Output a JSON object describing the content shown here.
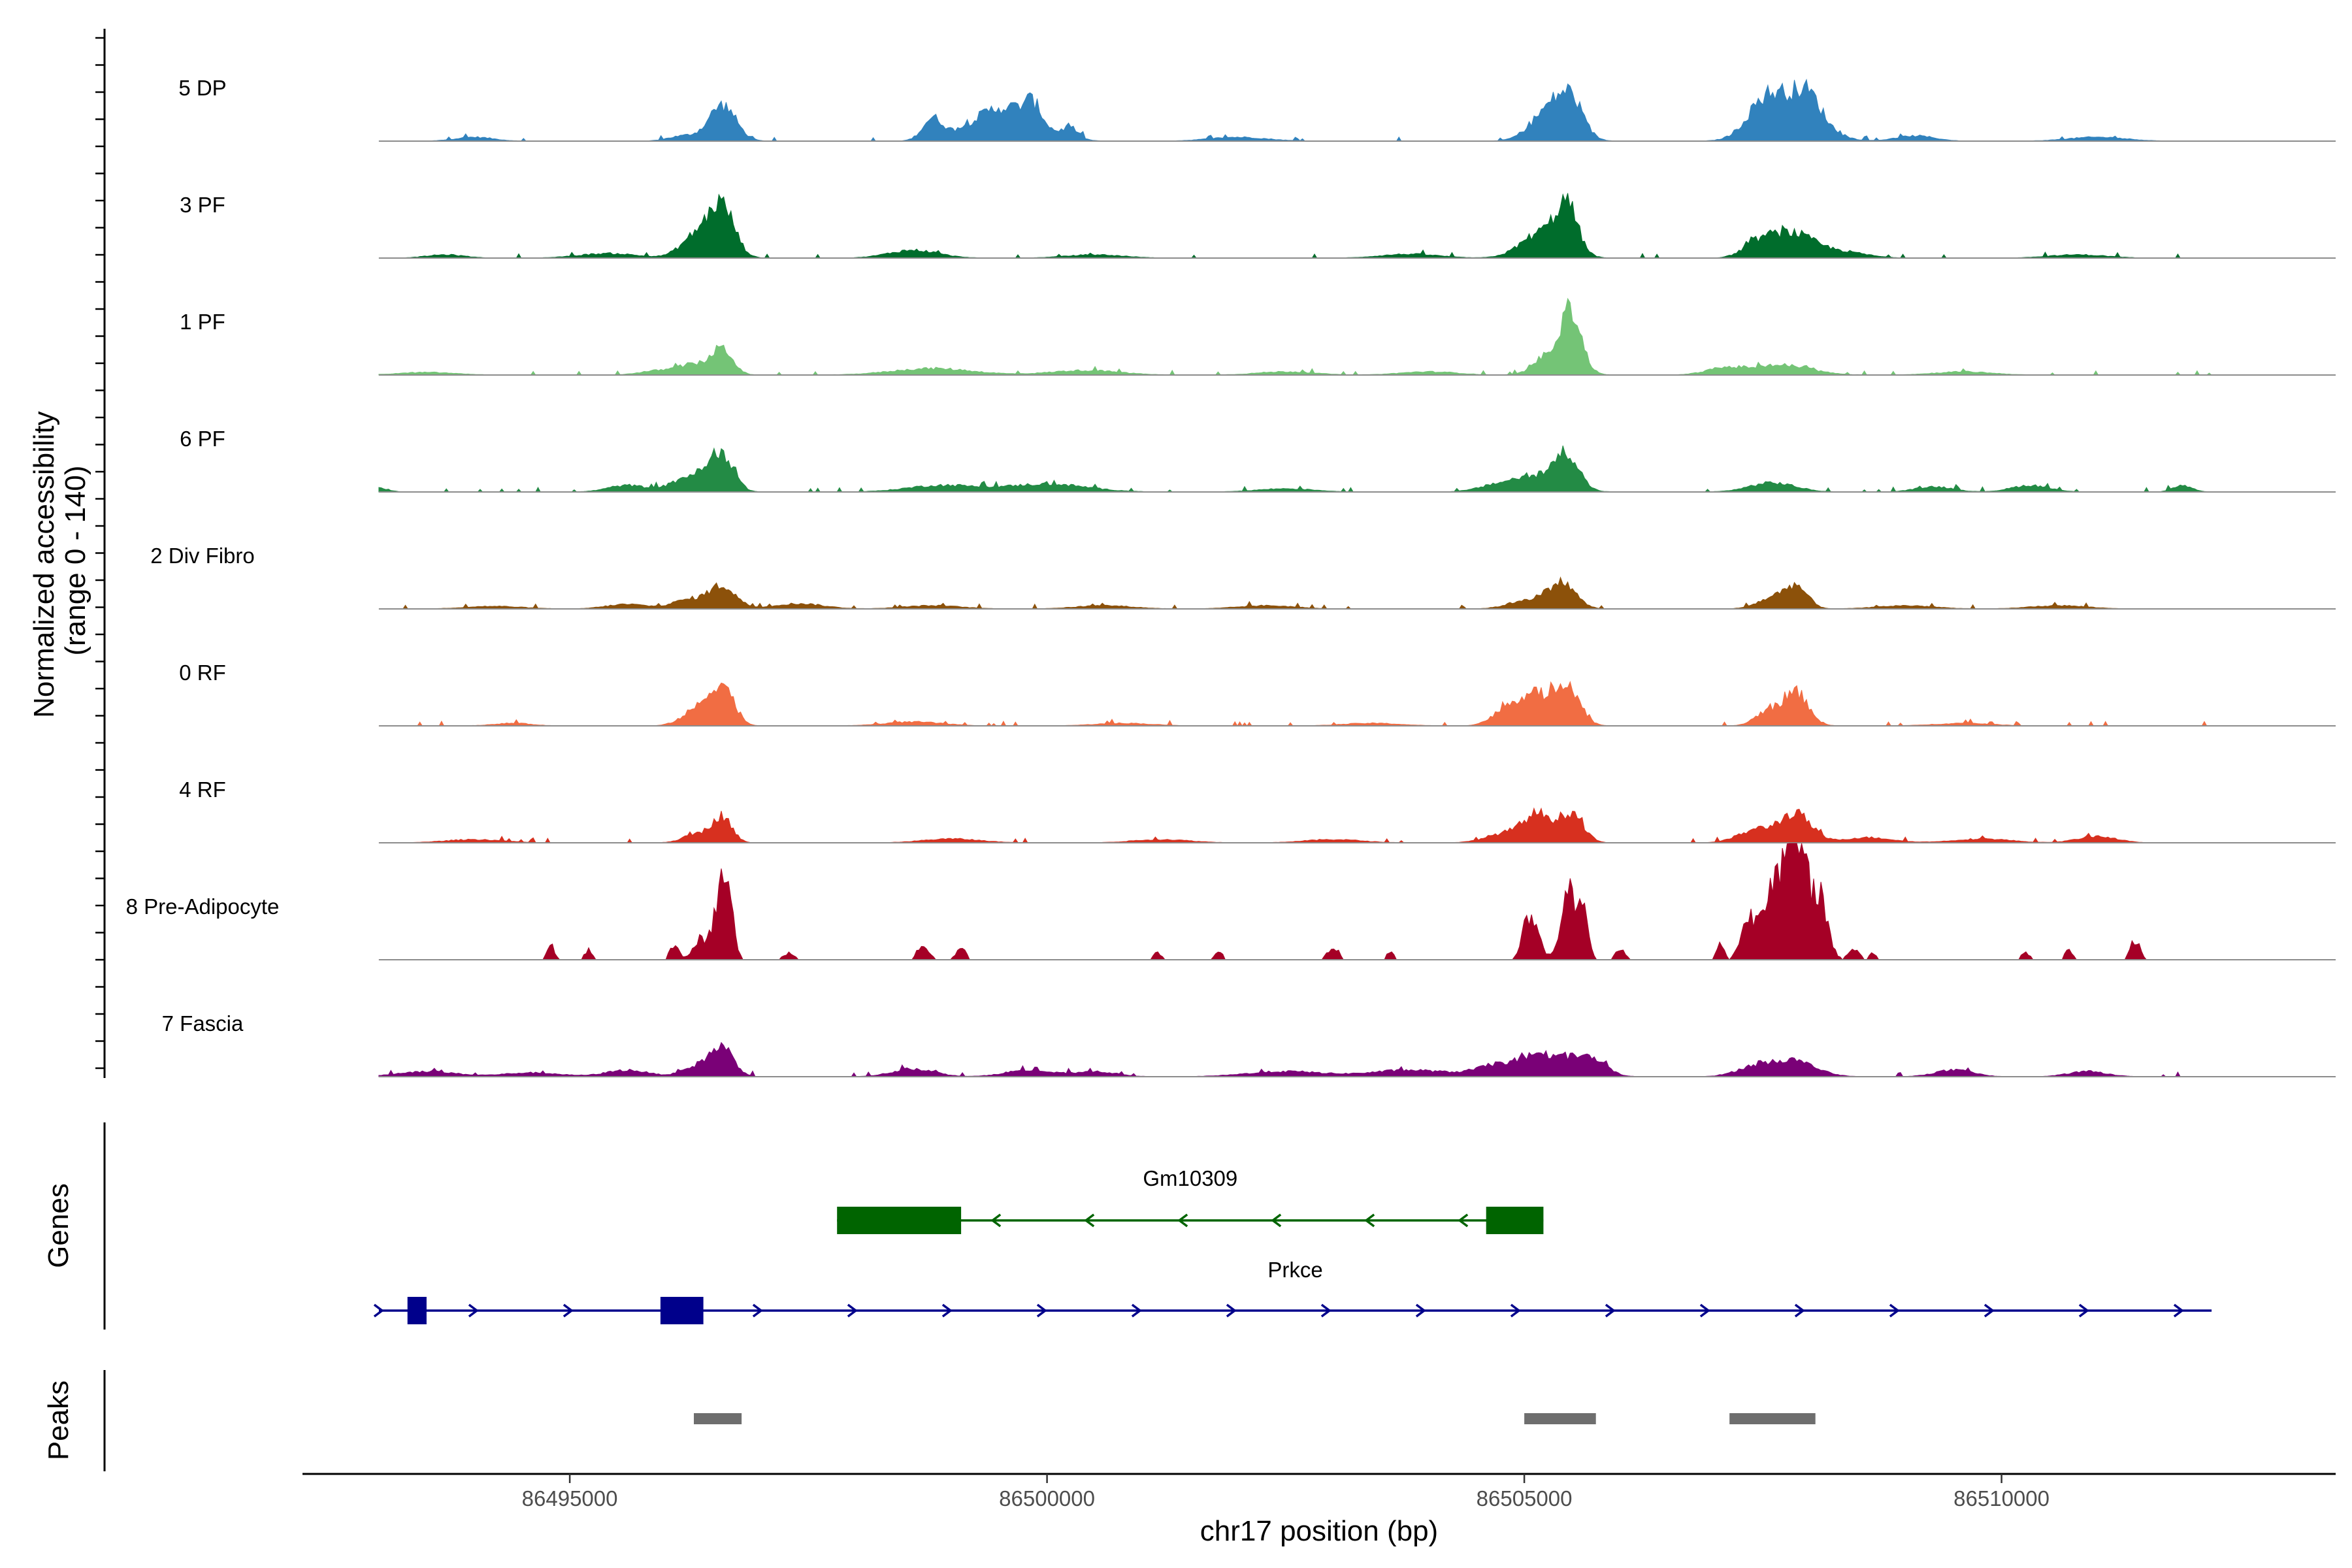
{
  "chart_data": {
    "type": "area",
    "ylabel": "Normalized accessibility\n(range 0 - 140)",
    "xlabel": "chr17 position (bp)",
    "xlim": [
      86492200,
      86513500
    ],
    "xticks": [
      86495000,
      86500000,
      86505000,
      86510000
    ],
    "x_tick_labels": [
      "86495000",
      "86500000",
      "86505000",
      "86510000"
    ],
    "coverage_range": [
      0,
      140
    ],
    "region": [
      86493000,
      86512200
    ],
    "tracks": [
      {
        "name": "5 DP",
        "color": "#3182bd",
        "peaks": [
          [
            86496600,
            140,
            55
          ],
          [
            86498800,
            105,
            32
          ],
          [
            86499550,
            330,
            52
          ],
          [
            86499850,
            90,
            28
          ],
          [
            86500250,
            80,
            16
          ],
          [
            86505300,
            200,
            54
          ],
          [
            86505500,
            120,
            40
          ],
          [
            86507800,
            280,
            57
          ],
          [
            86507500,
            180,
            36
          ],
          [
            86507980,
            130,
            30
          ],
          [
            86509100,
            200,
            8
          ],
          [
            86494000,
            200,
            6
          ],
          [
            86496200,
            160,
            8
          ],
          [
            86502000,
            300,
            6
          ],
          [
            86511000,
            300,
            6
          ]
        ]
      },
      {
        "name": "3 PF",
        "color": "#006d2c",
        "peaks": [
          [
            86496600,
            130,
            72
          ],
          [
            86496350,
            170,
            36
          ],
          [
            86498600,
            260,
            12
          ],
          [
            86495400,
            300,
            7
          ],
          [
            86505450,
            110,
            66
          ],
          [
            86505200,
            220,
            40
          ],
          [
            86507800,
            220,
            36
          ],
          [
            86507450,
            160,
            20
          ],
          [
            86508300,
            260,
            10
          ],
          [
            86500500,
            300,
            5
          ],
          [
            86503800,
            300,
            6
          ],
          [
            86510800,
            300,
            5
          ],
          [
            86493700,
            200,
            5
          ]
        ]
      },
      {
        "name": "1 PF",
        "color": "#74c476",
        "peaks": [
          [
            86496600,
            110,
            38
          ],
          [
            86496300,
            170,
            16
          ],
          [
            86495900,
            180,
            6
          ],
          [
            86505500,
            100,
            72
          ],
          [
            86505350,
            180,
            40
          ],
          [
            86507700,
            300,
            15
          ],
          [
            86507100,
            200,
            10
          ],
          [
            86498800,
            420,
            10
          ],
          [
            86500400,
            360,
            7
          ],
          [
            86502500,
            300,
            5
          ],
          [
            86504000,
            300,
            5
          ],
          [
            86509600,
            300,
            5
          ],
          [
            86493500,
            300,
            4
          ]
        ]
      },
      {
        "name": "6 PF",
        "color": "#238b45",
        "peaks": [
          [
            86496600,
            120,
            52
          ],
          [
            86496300,
            200,
            26
          ],
          [
            86495600,
            200,
            10
          ],
          [
            86498900,
            360,
            10
          ],
          [
            86500000,
            420,
            12
          ],
          [
            86505450,
            120,
            50
          ],
          [
            86505150,
            260,
            24
          ],
          [
            86504700,
            200,
            8
          ],
          [
            86507600,
            240,
            14
          ],
          [
            86509300,
            200,
            8
          ],
          [
            86510300,
            200,
            10
          ],
          [
            86511900,
            100,
            10
          ],
          [
            86493000,
            100,
            6
          ],
          [
            86502500,
            300,
            5
          ]
        ]
      },
      {
        "name": "2 Div Fibro",
        "color": "#8c510a",
        "peaks": [
          [
            86496600,
            140,
            34
          ],
          [
            86496250,
            170,
            14
          ],
          [
            86495600,
            220,
            7
          ],
          [
            86497400,
            260,
            8
          ],
          [
            86505400,
            140,
            38
          ],
          [
            86505050,
            200,
            14
          ],
          [
            86507850,
            120,
            32
          ],
          [
            86507600,
            160,
            16
          ],
          [
            86498800,
            300,
            5
          ],
          [
            86500600,
            300,
            5
          ],
          [
            86502300,
            300,
            5
          ],
          [
            86509000,
            300,
            5
          ],
          [
            86510600,
            300,
            5
          ],
          [
            86494200,
            300,
            4
          ]
        ]
      },
      {
        "name": "0 RF",
        "color": "#f16d43",
        "peaks": [
          [
            86496600,
            120,
            58
          ],
          [
            86496350,
            160,
            26
          ],
          [
            86505450,
            130,
            62
          ],
          [
            86505100,
            170,
            46
          ],
          [
            86504800,
            150,
            20
          ],
          [
            86507850,
            130,
            50
          ],
          [
            86507550,
            130,
            22
          ],
          [
            86498600,
            300,
            6
          ],
          [
            86500800,
            300,
            4
          ],
          [
            86503400,
            300,
            4
          ],
          [
            86509600,
            300,
            4
          ],
          [
            86494400,
            200,
            4
          ]
        ]
      },
      {
        "name": "4 RF",
        "color": "#d7301f",
        "peaks": [
          [
            86496600,
            100,
            38
          ],
          [
            86496350,
            150,
            14
          ],
          [
            86505150,
            150,
            42
          ],
          [
            86505500,
            120,
            44
          ],
          [
            86504800,
            200,
            14
          ],
          [
            86507850,
            160,
            42
          ],
          [
            86507450,
            200,
            20
          ],
          [
            86508600,
            260,
            8
          ],
          [
            86511000,
            200,
            10
          ],
          [
            86499000,
            300,
            6
          ],
          [
            86501200,
            300,
            5
          ],
          [
            86503000,
            300,
            5
          ],
          [
            86509800,
            300,
            6
          ],
          [
            86494000,
            300,
            5
          ]
        ]
      },
      {
        "name": "8 Pre-Adipocyte",
        "color": "#a50026",
        "peaks": [
          [
            86496650,
            60,
            100
          ],
          [
            86496550,
            70,
            70
          ],
          [
            86496350,
            60,
            30
          ],
          [
            86496100,
            50,
            22
          ],
          [
            86494800,
            40,
            22
          ],
          [
            86495200,
            40,
            16
          ],
          [
            86497300,
            60,
            10
          ],
          [
            86498700,
            60,
            22
          ],
          [
            86499100,
            50,
            20
          ],
          [
            86501150,
            40,
            12
          ],
          [
            86501800,
            40,
            12
          ],
          [
            86503000,
            60,
            20
          ],
          [
            86503600,
            40,
            12
          ],
          [
            86505100,
            70,
            60
          ],
          [
            86505000,
            50,
            30
          ],
          [
            86505450,
            70,
            100
          ],
          [
            86505600,
            60,
            80
          ],
          [
            86506000,
            50,
            18
          ],
          [
            86507850,
            110,
            185
          ],
          [
            86507600,
            100,
            120
          ],
          [
            86507350,
            80,
            60
          ],
          [
            86508100,
            80,
            90
          ],
          [
            86508450,
            60,
            16
          ],
          [
            86507050,
            40,
            24
          ],
          [
            86510250,
            40,
            12
          ],
          [
            86510700,
            40,
            14
          ],
          [
            86511400,
            50,
            30
          ],
          [
            86508650,
            40,
            10
          ]
        ]
      },
      {
        "name": "7 Fascia",
        "color": "#7a0177",
        "peaks": [
          [
            86496600,
            120,
            42
          ],
          [
            86496350,
            160,
            16
          ],
          [
            86495600,
            220,
            10
          ],
          [
            86498600,
            220,
            12
          ],
          [
            86499800,
            240,
            10
          ],
          [
            86500500,
            220,
            8
          ],
          [
            86505300,
            220,
            30
          ],
          [
            86505700,
            160,
            24
          ],
          [
            86504800,
            260,
            20
          ],
          [
            86503800,
            400,
            10
          ],
          [
            86502500,
            400,
            8
          ],
          [
            86507800,
            240,
            24
          ],
          [
            86507400,
            200,
            12
          ],
          [
            86509500,
            200,
            10
          ],
          [
            86510900,
            200,
            8
          ],
          [
            86493500,
            300,
            8
          ],
          [
            86494600,
            300,
            6
          ]
        ]
      }
    ],
    "genes": [
      {
        "name": "Gm10309",
        "color": "#006400",
        "strand": "-",
        "start": 86497800,
        "end": 86505200,
        "exons": [
          [
            86497800,
            86499100
          ],
          [
            86504600,
            86505200
          ]
        ]
      },
      {
        "name": "Prkce",
        "color": "#00008b",
        "strand": "+",
        "start": 86493000,
        "end": 86512200,
        "exons": [
          [
            86493300,
            86493500
          ],
          [
            86495950,
            86496400
          ]
        ]
      }
    ],
    "peaks_track": {
      "color": "#6e6e6e",
      "regions": [
        [
          86496300,
          86496800
        ],
        [
          86505000,
          86505750
        ],
        [
          86507150,
          86508050
        ]
      ]
    },
    "panel_labels": [
      "Genes",
      "Peaks"
    ]
  }
}
